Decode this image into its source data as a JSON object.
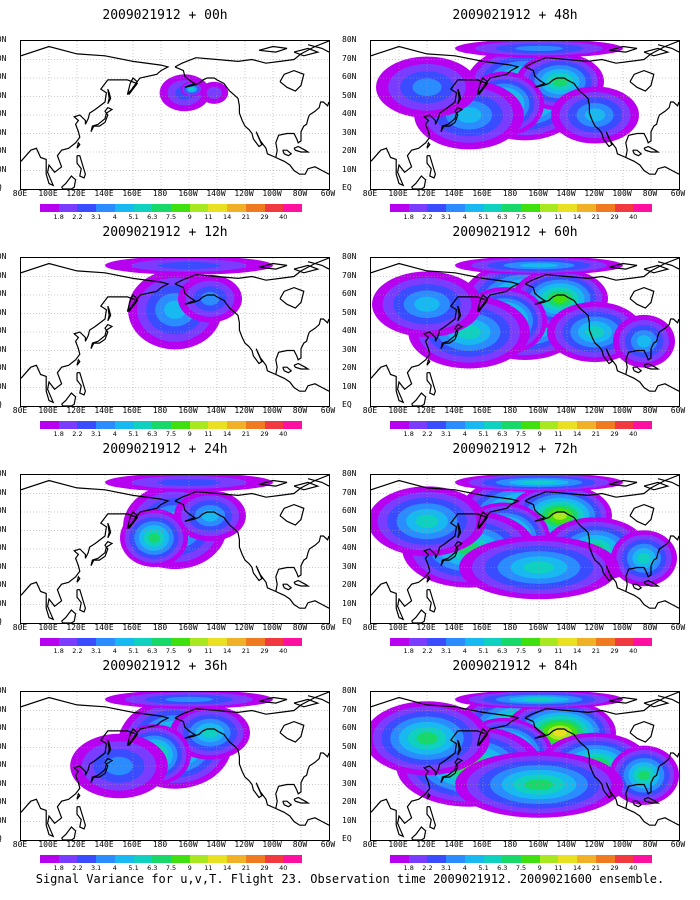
{
  "caption": "Signal Variance for u,v,T. Flight 23. Observation time 2009021912. 2009021600 ensemble.",
  "lat_labels": [
    "80N",
    "70N",
    "60N",
    "50N",
    "40N",
    "30N",
    "20N",
    "10N",
    "EQ"
  ],
  "lon_labels": [
    "80E",
    "100E",
    "120E",
    "140E",
    "160E",
    "180",
    "160W",
    "140W",
    "120W",
    "100W",
    "80W",
    "60W"
  ],
  "colorbar": {
    "levels": [
      "1.8",
      "2.2",
      "3.1",
      "4",
      "5.1",
      "6.3",
      "7.5",
      "9",
      "11",
      "14",
      "21",
      "29",
      "40"
    ],
    "colors": [
      "#b800f0",
      "#7a3cff",
      "#3a4cff",
      "#2a8cff",
      "#18b8f0",
      "#10d0c0",
      "#18d86a",
      "#40e010",
      "#a8e820",
      "#e8e020",
      "#f0b028",
      "#f07a20",
      "#f03a40",
      "#ff10a0"
    ]
  },
  "panels": [
    {
      "title": "2009021912 + 00h",
      "lead_hours": 0
    },
    {
      "title": "2009021912 + 48h",
      "lead_hours": 48
    },
    {
      "title": "2009021912 + 12h",
      "lead_hours": 12
    },
    {
      "title": "2009021912 + 60h",
      "lead_hours": 60
    },
    {
      "title": "2009021912 + 24h",
      "lead_hours": 24
    },
    {
      "title": "2009021912 + 72h",
      "lead_hours": 72
    },
    {
      "title": "2009021912 + 36h",
      "lead_hours": 36
    },
    {
      "title": "2009021912 + 84h",
      "lead_hours": 84
    }
  ],
  "map_extent": {
    "lon_min_east": 80,
    "lon_max_east": 300,
    "lat_min": 0,
    "lat_max": 80
  }
}
